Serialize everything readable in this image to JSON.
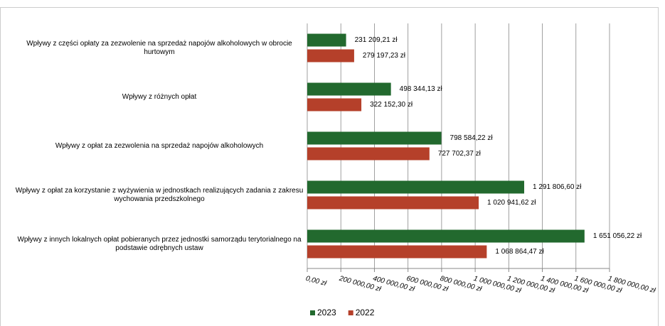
{
  "chart_data": {
    "type": "bar",
    "orientation": "horizontal",
    "categories": [
      "Wpływy z części opłaty za zezwolenie na sprzedaż napojów alkoholowych w obrocie hurtowym",
      "Wpływy z różnych opłat",
      "Wpływy z opłat za zezwolenia na sprzedaż napojów alkoholowych",
      "Wpływy z opłat za korzystanie z wyżywienia w jednostkach realizujących zadania z zakresu wychowania przedszkolnego",
      "Wpływy z innych lokalnych opłat pobieranych przez jednostki samorządu terytorialnego na podstawie odrębnych ustaw"
    ],
    "series": [
      {
        "name": "2023",
        "color": "#22692e",
        "values": [
          231209.21,
          498344.13,
          798584.22,
          1291806.6,
          1651056.22
        ],
        "value_labels": [
          "231 209,21 zł",
          "498 344,13 zł",
          "798 584,22 zł",
          "1 291 806,60 zł",
          "1 651 056,22 zł"
        ]
      },
      {
        "name": "2022",
        "color": "#b5402a",
        "values": [
          279197.23,
          322152.3,
          727702.37,
          1020941.62,
          1068864.47
        ],
        "value_labels": [
          "279 197,23 zł",
          "322 152,30 zł",
          "727 702,37 zł",
          "1 020 941,62 zł",
          "1 068 864,47 zł"
        ]
      }
    ],
    "xlim": [
      0,
      1800000
    ],
    "xticks": [
      {
        "value": 0,
        "label": "0,00 zł"
      },
      {
        "value": 200000,
        "label": "200 000,00 zł"
      },
      {
        "value": 400000,
        "label": "400 000,00 zł"
      },
      {
        "value": 600000,
        "label": "600 000,00 zł"
      },
      {
        "value": 800000,
        "label": "800 000,00 zł"
      },
      {
        "value": 1000000,
        "label": "1 000 000,00 zł"
      },
      {
        "value": 1200000,
        "label": "1 200 000,00 zł"
      },
      {
        "value": 1400000,
        "label": "1 400 000,00 zł"
      },
      {
        "value": 1600000,
        "label": "1 600 000,00 zł"
      },
      {
        "value": 1800000,
        "label": "1 800 000,00 zł"
      }
    ],
    "grid": true,
    "legend": "bottom"
  }
}
